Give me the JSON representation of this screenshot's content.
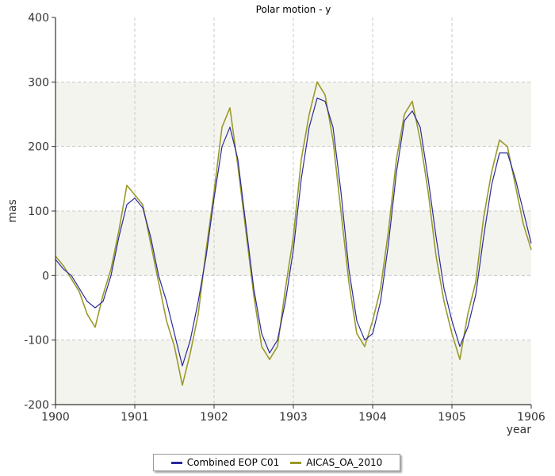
{
  "chart_data": {
    "type": "line",
    "title": "Polar motion - y",
    "xlabel": "year",
    "ylabel": "mas",
    "xlim": [
      1900,
      1906
    ],
    "ylim": [
      -200,
      400
    ],
    "xticks": [
      "1900",
      "1901",
      "1902",
      "1903",
      "1904",
      "1905",
      "1906"
    ],
    "yticks": [
      "-200",
      "-100",
      "0",
      "100",
      "200",
      "300",
      "400"
    ],
    "grid": true,
    "legend_position": "bottom",
    "series": [
      {
        "name": "Combined EOP C01",
        "color": "#2a2a9e",
        "x": [
          1900.0,
          1900.1,
          1900.2,
          1900.3,
          1900.4,
          1900.5,
          1900.6,
          1900.7,
          1900.8,
          1900.9,
          1901.0,
          1901.1,
          1901.2,
          1901.3,
          1901.4,
          1901.5,
          1901.6,
          1901.7,
          1901.8,
          1901.9,
          1902.0,
          1902.1,
          1902.2,
          1902.3,
          1902.4,
          1902.5,
          1902.6,
          1902.7,
          1902.8,
          1902.9,
          1903.0,
          1903.1,
          1903.2,
          1903.3,
          1903.4,
          1903.5,
          1903.6,
          1903.7,
          1903.8,
          1903.9,
          1904.0,
          1904.1,
          1904.2,
          1904.3,
          1904.4,
          1904.5,
          1904.6,
          1904.7,
          1904.8,
          1904.9,
          1905.0,
          1905.1,
          1905.2,
          1905.3,
          1905.4,
          1905.5,
          1905.6,
          1905.7,
          1905.8,
          1905.9,
          1906.0
        ],
        "values": [
          25,
          10,
          0,
          -20,
          -40,
          -50,
          -40,
          0,
          60,
          110,
          120,
          105,
          60,
          0,
          -40,
          -90,
          -140,
          -100,
          -40,
          30,
          120,
          200,
          230,
          180,
          80,
          -20,
          -90,
          -120,
          -100,
          -40,
          40,
          150,
          230,
          275,
          270,
          230,
          130,
          10,
          -70,
          -100,
          -90,
          -40,
          50,
          160,
          240,
          255,
          230,
          150,
          60,
          -20,
          -70,
          -110,
          -80,
          -30,
          60,
          140,
          190,
          190,
          150,
          100,
          50
        ]
      },
      {
        "name": "AICAS_OA_2010",
        "color": "#9a9a2a",
        "x": [
          1900.0,
          1900.1,
          1900.2,
          1900.3,
          1900.4,
          1900.5,
          1900.6,
          1900.7,
          1900.8,
          1900.9,
          1901.0,
          1901.1,
          1901.2,
          1901.3,
          1901.4,
          1901.5,
          1901.6,
          1901.7,
          1901.8,
          1901.9,
          1902.0,
          1902.1,
          1902.2,
          1902.3,
          1902.4,
          1902.5,
          1902.6,
          1902.7,
          1902.8,
          1902.9,
          1903.0,
          1903.1,
          1903.2,
          1903.3,
          1903.4,
          1903.5,
          1903.6,
          1903.7,
          1903.8,
          1903.9,
          1904.0,
          1904.1,
          1904.2,
          1904.3,
          1904.4,
          1904.5,
          1904.6,
          1904.7,
          1904.8,
          1904.9,
          1905.0,
          1905.1,
          1905.2,
          1905.3,
          1905.4,
          1905.5,
          1905.6,
          1905.7,
          1905.8,
          1905.9,
          1906.0
        ],
        "values": [
          30,
          15,
          -5,
          -25,
          -60,
          -80,
          -30,
          10,
          70,
          140,
          125,
          110,
          50,
          -10,
          -70,
          -110,
          -170,
          -120,
          -60,
          40,
          130,
          230,
          260,
          170,
          70,
          -30,
          -110,
          -130,
          -110,
          -20,
          60,
          180,
          250,
          300,
          280,
          210,
          100,
          -10,
          -90,
          -110,
          -70,
          -20,
          70,
          180,
          250,
          270,
          210,
          130,
          30,
          -40,
          -90,
          -130,
          -60,
          -10,
          90,
          160,
          210,
          200,
          140,
          80,
          40
        ]
      }
    ]
  }
}
